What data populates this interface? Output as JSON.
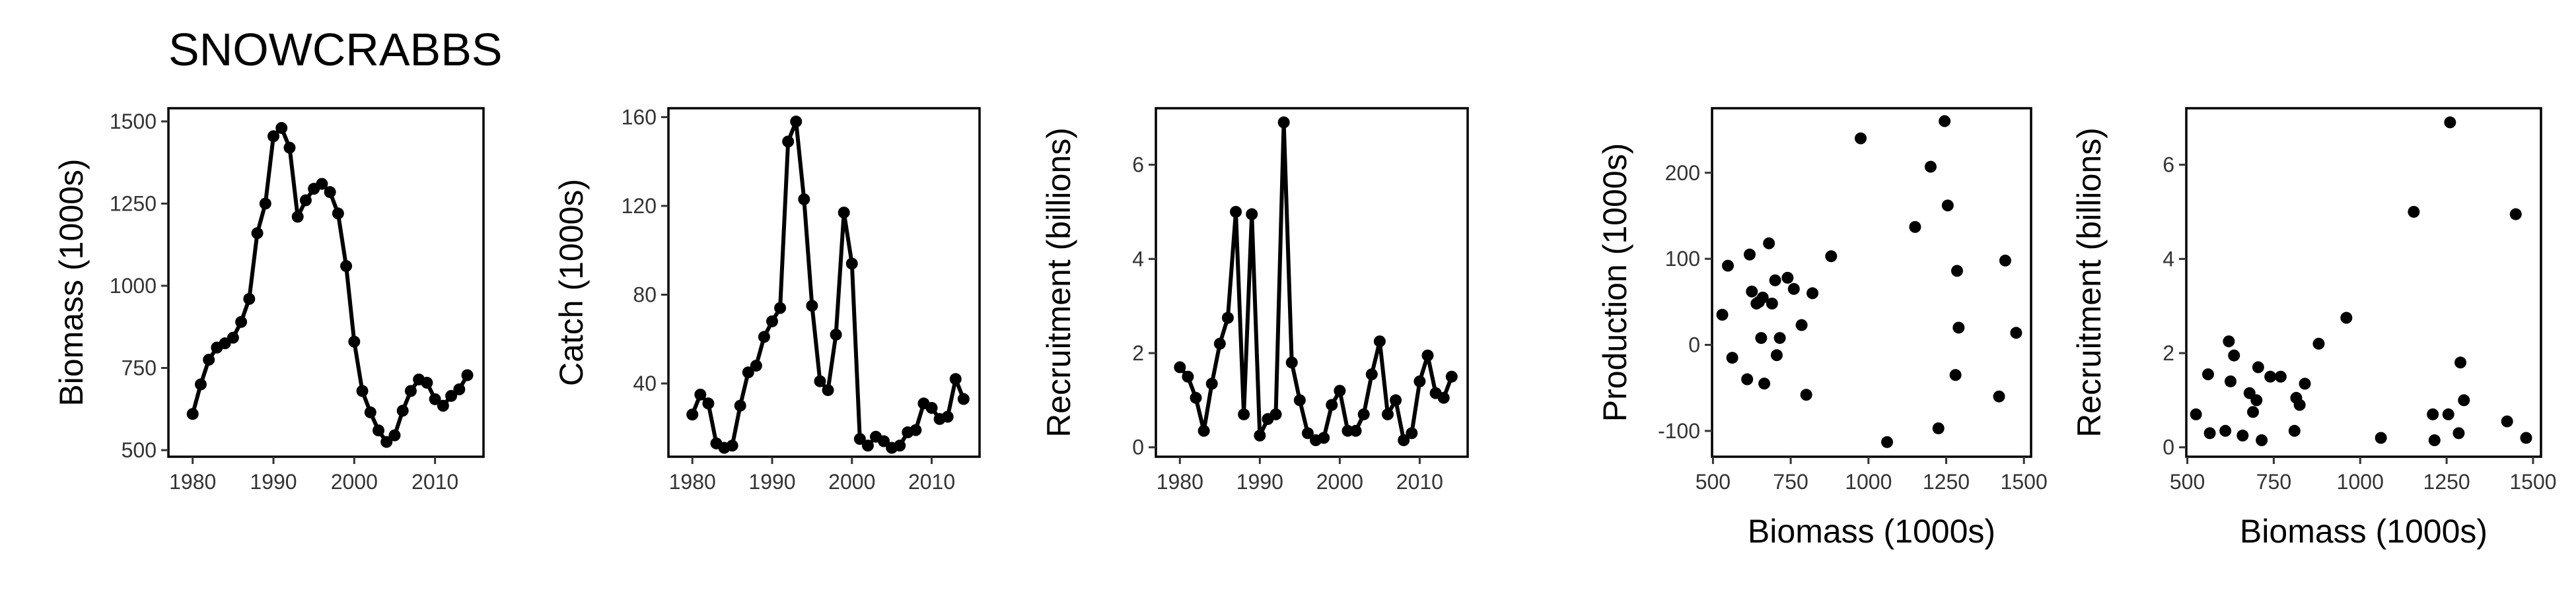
{
  "title": "SNOWCRABBS",
  "chart_data": [
    {
      "type": "line",
      "xlabel": "",
      "ylabel": "Biomass (1000s)",
      "xlim": [
        1977,
        2016
      ],
      "ylim": [
        480,
        1540
      ],
      "xticks": [
        1980,
        1990,
        2000,
        2010
      ],
      "yticks": [
        500,
        750,
        1000,
        1250,
        1500
      ],
      "points": true,
      "x": [
        1980,
        1981,
        1982,
        1983,
        1984,
        1985,
        1986,
        1987,
        1988,
        1989,
        1990,
        1991,
        1992,
        1993,
        1994,
        1995,
        1996,
        1997,
        1998,
        1999,
        2000,
        2001,
        2002,
        2003,
        2004,
        2005,
        2006,
        2007,
        2008,
        2009,
        2010,
        2011,
        2012,
        2013,
        2014
      ],
      "y": [
        610,
        700,
        775,
        812,
        825,
        842,
        890,
        960,
        1160,
        1250,
        1455,
        1480,
        1420,
        1210,
        1260,
        1295,
        1310,
        1285,
        1220,
        1060,
        830,
        680,
        615,
        560,
        525,
        545,
        620,
        680,
        715,
        705,
        655,
        635,
        665,
        685,
        728
      ]
    },
    {
      "type": "line",
      "xlabel": "",
      "ylabel": "Catch (1000s)",
      "xlim": [
        1977,
        2016
      ],
      "ylim": [
        7,
        164
      ],
      "xticks": [
        1980,
        1990,
        2000,
        2010
      ],
      "yticks": [
        40,
        80,
        120,
        160
      ],
      "points": true,
      "x": [
        1980,
        1981,
        1982,
        1983,
        1984,
        1985,
        1986,
        1987,
        1988,
        1989,
        1990,
        1991,
        1992,
        1993,
        1994,
        1995,
        1996,
        1997,
        1998,
        1999,
        2000,
        2001,
        2002,
        2003,
        2004,
        2005,
        2006,
        2007,
        2008,
        2009,
        2010,
        2011,
        2012,
        2013,
        2014
      ],
      "y": [
        26,
        35,
        31,
        13,
        11,
        12,
        30,
        45,
        48,
        61,
        68,
        74,
        149,
        158,
        123,
        75,
        41,
        37,
        62,
        117,
        94,
        15,
        12,
        16,
        14,
        11,
        12,
        18,
        19,
        31,
        29,
        24,
        25,
        42,
        33
      ]
    },
    {
      "type": "line",
      "xlabel": "",
      "ylabel": "Recruitment (billions)",
      "xlim": [
        1977,
        2016
      ],
      "ylim": [
        -0.2,
        7.2
      ],
      "xticks": [
        1980,
        1990,
        2000,
        2010
      ],
      "yticks": [
        0,
        2,
        4,
        6
      ],
      "points": true,
      "x": [
        1980,
        1981,
        1982,
        1983,
        1984,
        1985,
        1986,
        1987,
        1988,
        1989,
        1990,
        1991,
        1992,
        1993,
        1994,
        1995,
        1996,
        1997,
        1998,
        1999,
        2000,
        2001,
        2002,
        2003,
        2004,
        2005,
        2006,
        2007,
        2008,
        2009,
        2010,
        2011,
        2012,
        2013,
        2014
      ],
      "y": [
        1.7,
        1.5,
        1.05,
        0.35,
        1.35,
        2.2,
        2.75,
        5.0,
        0.7,
        4.95,
        0.25,
        0.6,
        0.7,
        6.9,
        1.8,
        1.0,
        0.3,
        0.15,
        0.2,
        0.9,
        1.2,
        0.35,
        0.35,
        0.7,
        1.55,
        2.25,
        0.7,
        1.0,
        0.15,
        0.3,
        1.4,
        1.95,
        1.15,
        1.05,
        1.5
      ]
    },
    {
      "type": "scatter",
      "xlabel": "Biomass (1000s)",
      "ylabel": "Production (1000s)",
      "xlim": [
        497,
        1523
      ],
      "ylim": [
        -130,
        275
      ],
      "xticks": [
        500,
        750,
        1000,
        1250,
        1500
      ],
      "yticks": [
        -100,
        0,
        100,
        200
      ],
      "x": [
        530,
        548,
        562,
        610,
        618,
        625,
        640,
        648,
        655,
        660,
        665,
        680,
        690,
        700,
        705,
        715,
        740,
        760,
        785,
        800,
        820,
        880,
        975,
        1060,
        1150,
        1200,
        1225,
        1245,
        1255,
        1280,
        1285,
        1290,
        1420,
        1440,
        1475
      ],
      "y": [
        35,
        92,
        -15,
        -40,
        105,
        62,
        48,
        50,
        8,
        55,
        -45,
        118,
        48,
        75,
        -12,
        8,
        78,
        65,
        23,
        -58,
        60,
        103,
        240,
        -113,
        137,
        207,
        -97,
        260,
        162,
        -35,
        86,
        20,
        -60,
        98,
        14
      ]
    },
    {
      "type": "scatter",
      "xlabel": "Biomass (1000s)",
      "ylabel": "Recruitment (billions)",
      "xlim": [
        497,
        1523
      ],
      "ylim": [
        -0.2,
        7.2
      ],
      "xticks": [
        500,
        750,
        1000,
        1250,
        1500
      ],
      "yticks": [
        0,
        2,
        4,
        6
      ],
      "x": [
        525,
        560,
        565,
        610,
        620,
        625,
        635,
        660,
        680,
        690,
        700,
        705,
        715,
        740,
        770,
        810,
        815,
        825,
        840,
        880,
        960,
        1060,
        1155,
        1210,
        1215,
        1255,
        1260,
        1285,
        1290,
        1300,
        1425,
        1450,
        1480
      ],
      "y": [
        0.7,
        1.55,
        0.3,
        0.35,
        2.25,
        1.4,
        1.95,
        0.25,
        1.15,
        0.75,
        1.0,
        1.7,
        0.15,
        1.5,
        1.5,
        0.35,
        1.05,
        0.9,
        1.35,
        2.2,
        2.75,
        0.2,
        5.0,
        0.7,
        0.15,
        0.7,
        6.9,
        0.3,
        1.8,
        1.0,
        0.55,
        4.95,
        0.2
      ]
    }
  ]
}
